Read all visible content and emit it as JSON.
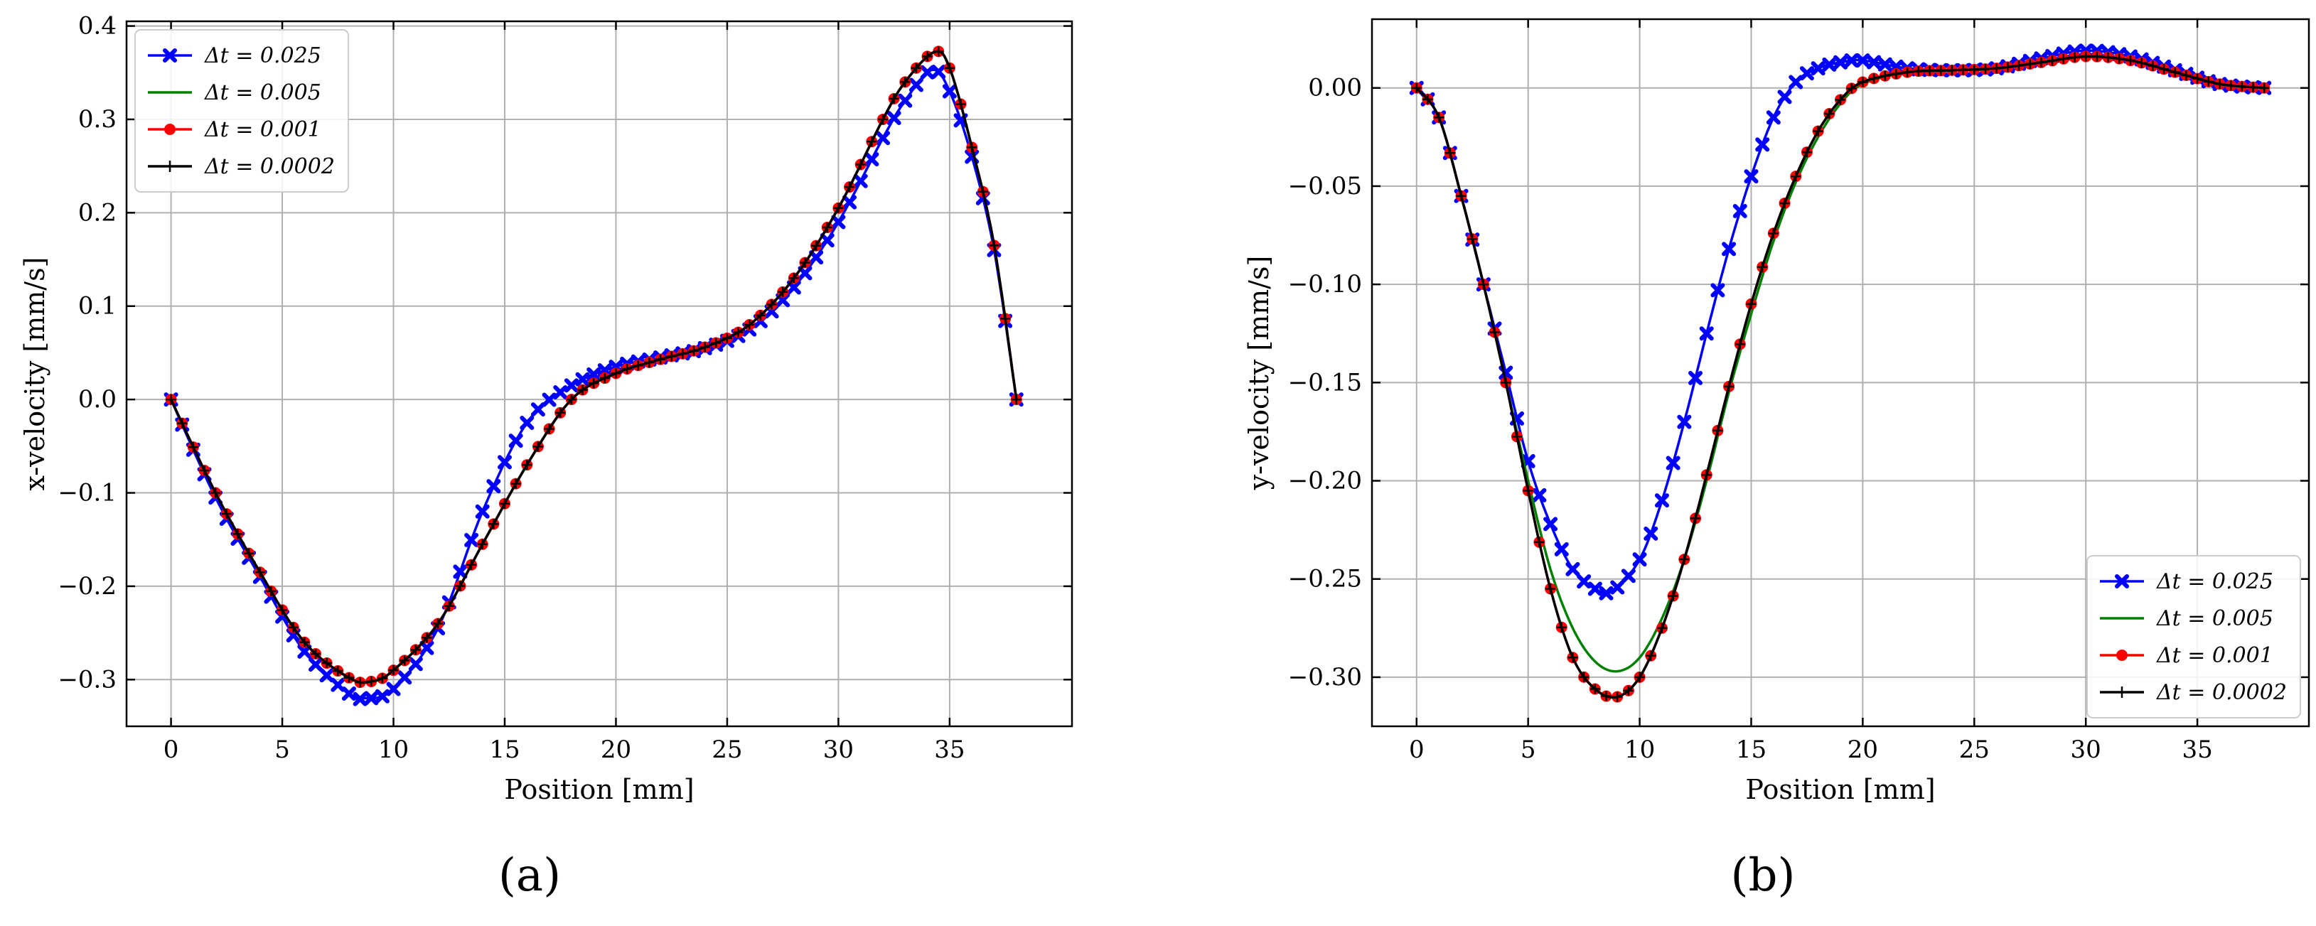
{
  "chart_data": [
    {
      "type": "line",
      "panel_label": "(a)",
      "xlabel": "Position [mm]",
      "ylabel": "x-velocity [mm/s]",
      "xlim": [
        -2,
        40.5
      ],
      "ylim": [
        -0.35,
        0.405
      ],
      "xticks": [
        0,
        5,
        10,
        15,
        20,
        25,
        30,
        35
      ],
      "yticks": [
        -0.3,
        -0.2,
        -0.1,
        0.0,
        0.1,
        0.2,
        0.3,
        0.4
      ],
      "ytick_labels": [
        "−0.3",
        "−0.2",
        "−0.1",
        "0.0",
        "0.1",
        "0.2",
        "0.3",
        "0.4"
      ],
      "grid": true,
      "legend_position": "top-left",
      "series": [
        {
          "name": "Δt = 0.025",
          "color": "#0000ff",
          "marker": "X",
          "x": [
            0,
            2,
            4,
            6,
            8,
            8.7,
            10,
            12,
            14,
            16,
            18,
            20,
            22,
            24,
            26,
            28,
            30,
            32,
            33,
            34.2,
            35,
            36,
            37,
            38
          ],
          "y": [
            0,
            -0.105,
            -0.19,
            -0.27,
            -0.315,
            -0.32,
            -0.31,
            -0.245,
            -0.12,
            -0.025,
            0.015,
            0.035,
            0.045,
            0.055,
            0.075,
            0.12,
            0.19,
            0.28,
            0.32,
            0.353,
            0.33,
            0.26,
            0.16,
            0
          ]
        },
        {
          "name": "Δt = 0.005",
          "color": "#008000",
          "marker": "none",
          "x": [
            0,
            2,
            4,
            6,
            8,
            9,
            10,
            12,
            14,
            16,
            18,
            20,
            22,
            24,
            26,
            28,
            30,
            32,
            33,
            34.3,
            35,
            36,
            37,
            38
          ],
          "y": [
            0,
            -0.1,
            -0.185,
            -0.26,
            -0.298,
            -0.302,
            -0.29,
            -0.24,
            -0.155,
            -0.07,
            0.0,
            0.028,
            0.043,
            0.056,
            0.08,
            0.13,
            0.205,
            0.3,
            0.34,
            0.372,
            0.355,
            0.27,
            0.165,
            0
          ]
        },
        {
          "name": "Δt = 0.001",
          "color": "#ff0000",
          "marker": "o",
          "x": [
            0,
            2,
            4,
            6,
            8,
            9,
            10,
            12,
            14,
            16,
            18,
            20,
            22,
            24,
            26,
            28,
            30,
            32,
            33,
            34.3,
            35,
            36,
            37,
            38
          ],
          "y": [
            0,
            -0.1,
            -0.185,
            -0.26,
            -0.298,
            -0.302,
            -0.29,
            -0.24,
            -0.155,
            -0.07,
            0.0,
            0.028,
            0.043,
            0.056,
            0.08,
            0.13,
            0.205,
            0.3,
            0.34,
            0.372,
            0.355,
            0.27,
            0.165,
            0
          ]
        },
        {
          "name": "Δt = 0.0002",
          "color": "#000000",
          "marker": "+",
          "x": [
            0,
            2,
            4,
            6,
            8,
            9,
            10,
            12,
            14,
            16,
            18,
            20,
            22,
            24,
            26,
            28,
            30,
            32,
            33,
            34.3,
            35,
            36,
            37,
            38
          ],
          "y": [
            0,
            -0.1,
            -0.185,
            -0.26,
            -0.298,
            -0.302,
            -0.29,
            -0.24,
            -0.155,
            -0.07,
            0.0,
            0.028,
            0.043,
            0.056,
            0.08,
            0.13,
            0.205,
            0.3,
            0.34,
            0.372,
            0.355,
            0.27,
            0.165,
            0
          ]
        }
      ]
    },
    {
      "type": "line",
      "panel_label": "(b)",
      "xlabel": "Position [mm]",
      "ylabel": "y-velocity [mm/s]",
      "xlim": [
        -2,
        40
      ],
      "ylim": [
        -0.325,
        0.035
      ],
      "xticks": [
        0,
        5,
        10,
        15,
        20,
        25,
        30,
        35
      ],
      "yticks": [
        -0.3,
        -0.25,
        -0.2,
        -0.15,
        -0.1,
        -0.05,
        0.0
      ],
      "ytick_labels": [
        "−0.30",
        "−0.25",
        "−0.20",
        "−0.15",
        "−0.10",
        "−0.05",
        "0.00"
      ],
      "grid": true,
      "legend_position": "bottom-right",
      "series": [
        {
          "name": "Δt = 0.025",
          "color": "#0000ff",
          "marker": "X",
          "x": [
            0,
            1,
            2,
            3,
            4,
            5,
            6,
            7,
            8,
            8.8,
            10,
            11,
            12,
            13,
            14,
            15,
            16,
            17,
            18,
            19,
            20,
            22,
            24,
            26,
            28,
            30,
            32,
            34,
            36,
            38
          ],
          "y": [
            0,
            -0.015,
            -0.055,
            -0.1,
            -0.145,
            -0.19,
            -0.222,
            -0.245,
            -0.255,
            -0.256,
            -0.24,
            -0.21,
            -0.17,
            -0.125,
            -0.082,
            -0.045,
            -0.015,
            0.003,
            0.01,
            0.013,
            0.014,
            0.01,
            0.009,
            0.01,
            0.015,
            0.019,
            0.016,
            0.009,
            0.002,
            0
          ]
        },
        {
          "name": "Δt = 0.005",
          "color": "#008000",
          "marker": "none",
          "x": [
            0,
            1,
            2,
            3,
            4,
            5,
            6,
            7,
            8,
            9,
            10,
            11,
            12,
            13,
            14,
            15,
            16,
            17,
            18,
            19,
            20,
            22,
            24,
            26,
            28,
            30,
            32,
            34,
            36,
            38
          ],
          "y": [
            0,
            -0.015,
            -0.055,
            -0.1,
            -0.15,
            -0.2,
            -0.245,
            -0.275,
            -0.292,
            -0.297,
            -0.29,
            -0.27,
            -0.24,
            -0.2,
            -0.155,
            -0.115,
            -0.078,
            -0.048,
            -0.025,
            -0.008,
            0.002,
            0.008,
            0.009,
            0.01,
            0.013,
            0.016,
            0.014,
            0.008,
            0.002,
            0
          ]
        },
        {
          "name": "Δt = 0.001",
          "color": "#ff0000",
          "marker": "o",
          "x": [
            0,
            1,
            2,
            3,
            4,
            5,
            6,
            7,
            8,
            9,
            10,
            11,
            12,
            13,
            14,
            15,
            16,
            17,
            18,
            19,
            20,
            22,
            24,
            26,
            28,
            30,
            32,
            34,
            36,
            38
          ],
          "y": [
            0,
            -0.015,
            -0.055,
            -0.1,
            -0.15,
            -0.205,
            -0.255,
            -0.29,
            -0.306,
            -0.31,
            -0.3,
            -0.275,
            -0.24,
            -0.197,
            -0.152,
            -0.11,
            -0.074,
            -0.045,
            -0.022,
            -0.006,
            0.003,
            0.008,
            0.009,
            0.01,
            0.013,
            0.016,
            0.014,
            0.008,
            0.002,
            0
          ]
        },
        {
          "name": "Δt = 0.0002",
          "color": "#000000",
          "marker": "+",
          "x": [
            0,
            1,
            2,
            3,
            4,
            5,
            6,
            7,
            8,
            9,
            10,
            11,
            12,
            13,
            14,
            15,
            16,
            17,
            18,
            19,
            20,
            22,
            24,
            26,
            28,
            30,
            32,
            34,
            36,
            38
          ],
          "y": [
            0,
            -0.015,
            -0.055,
            -0.1,
            -0.15,
            -0.205,
            -0.255,
            -0.29,
            -0.306,
            -0.31,
            -0.3,
            -0.275,
            -0.24,
            -0.197,
            -0.152,
            -0.11,
            -0.074,
            -0.045,
            -0.022,
            -0.006,
            0.003,
            0.008,
            0.009,
            0.01,
            0.013,
            0.016,
            0.014,
            0.008,
            0.002,
            0
          ]
        }
      ]
    }
  ]
}
